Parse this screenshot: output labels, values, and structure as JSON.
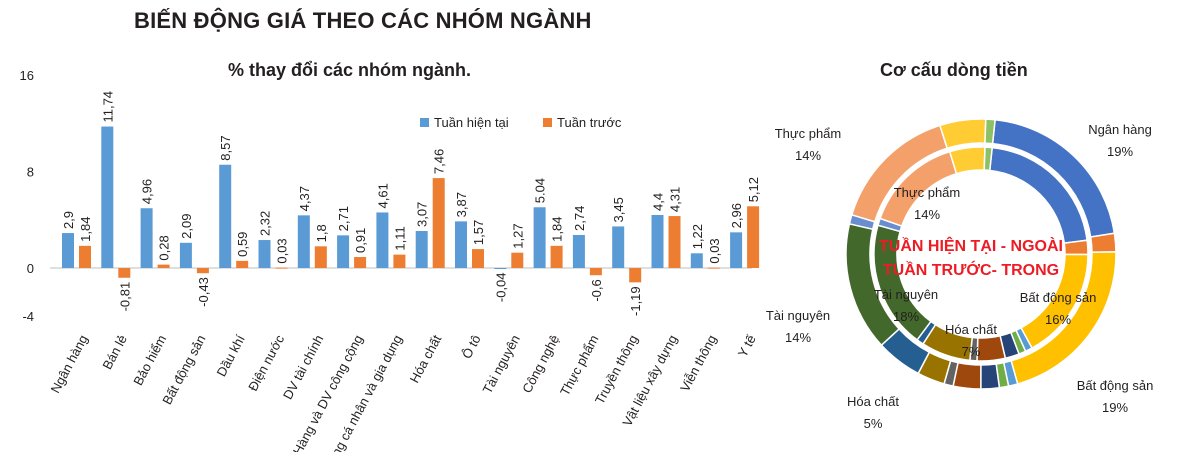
{
  "header": {
    "title": "BIẾN ĐỘNG GIÁ THEO CÁC NHÓM NGÀNH",
    "bar_subtitle": "% thay đổi các nhóm ngành.",
    "pie_subtitle": "Cơ cấu dòng tiền"
  },
  "chart_data": [
    {
      "type": "bar",
      "title": "% thay đổi các nhóm ngành.",
      "ylim": [
        -4,
        16
      ],
      "yticks": [
        -4,
        0,
        8,
        16
      ],
      "grid": false,
      "legend": "top-right",
      "categories": [
        "Ngân hàng",
        "Bán lẻ",
        "Bảo hiểm",
        "Bất động sản",
        "Dầu khí",
        "Điện nước",
        "DV tài chính",
        "Hàng và DV công cộng",
        "Hàng cá nhân và gia dụng",
        "Hóa chất",
        "Ô tô",
        "Tài nguyên",
        "Công nghệ",
        "Thực phẩm",
        "Truyền thông",
        "Vật liệu xây dựng",
        "Viễn thông",
        "Y tế"
      ],
      "series": [
        {
          "name": "Tuần hiện tại",
          "color": "#5b9bd5",
          "values": [
            2.9,
            11.74,
            4.96,
            2.09,
            8.57,
            2.32,
            4.37,
            2.71,
            4.61,
            3.07,
            3.87,
            -0.04,
            5.04,
            2.74,
            3.45,
            4.4,
            1.22,
            2.96
          ],
          "labels": [
            "2,9",
            "11,74",
            "4,96",
            "2,09",
            "8,57",
            "2,32",
            "4,37",
            "2,71",
            "4,61",
            "3,07",
            "3,87",
            "-0,04",
            "5.04",
            "2,74",
            "3,45",
            "4,4",
            "1,22",
            "2,96"
          ]
        },
        {
          "name": "Tuần trước",
          "color": "#ed7d31",
          "values": [
            1.84,
            -0.81,
            0.28,
            -0.43,
            0.59,
            0.03,
            1.8,
            0.91,
            1.11,
            7.46,
            1.57,
            1.27,
            1.84,
            -0.6,
            -1.19,
            4.31,
            0.03,
            5.12
          ],
          "labels": [
            "1,84",
            "-0,81",
            "0,28",
            "-0,43",
            "0,59",
            "0,03",
            "1,8",
            "0,91",
            "1,11",
            "7,46",
            "1,57",
            "1,27",
            "1,84",
            "-0,6",
            "-1,19",
            "4,31",
            "0,03",
            "5,12"
          ]
        }
      ]
    },
    {
      "type": "pie",
      "title": "Cơ cấu dòng tiền",
      "center_note": [
        "TUẦN HIỆN TẠI - NGOÀI",
        "TUẦN TRƯỚC- TRONG"
      ],
      "rings": [
        {
          "name": "Tuần hiện tại",
          "slices": [
            {
              "label": "Ngân hàng",
              "value": 19,
              "color": "#4472c4"
            },
            {
              "label": "",
              "value": 2,
              "color": "#ed7d31"
            },
            {
              "label": "Bất động sản",
              "value": 19,
              "color": "#ffc000"
            },
            {
              "label": "",
              "value": 1,
              "color": "#5b9bd5"
            },
            {
              "label": "",
              "value": 1,
              "color": "#70ad47"
            },
            {
              "label": "",
              "value": 2,
              "color": "#264478"
            },
            {
              "label": "",
              "value": 3,
              "color": "#9e480e"
            },
            {
              "label": "",
              "value": 1,
              "color": "#636363"
            },
            {
              "label": "",
              "value": 3,
              "color": "#997300"
            },
            {
              "label": "Hóa chất",
              "value": 5,
              "color": "#255e91"
            },
            {
              "label": "Tài nguyên",
              "value": 14,
              "color": "#43682b"
            },
            {
              "label": "",
              "value": 1,
              "color": "#698ed0"
            },
            {
              "label": "Thực phẩm",
              "value": 14,
              "color": "#f4a06b"
            },
            {
              "label": "",
              "value": 5,
              "color": "#ffcd33"
            },
            {
              "label": "",
              "value": 1,
              "color": "#8cc168"
            }
          ]
        },
        {
          "name": "Tuần trước",
          "slices": [
            {
              "label": "",
              "value": 20,
              "color": "#4472c4"
            },
            {
              "label": "",
              "value": 2,
              "color": "#ed7d31"
            },
            {
              "label": "Bất động sản",
              "value": 16,
              "color": "#ffc000"
            },
            {
              "label": "",
              "value": 1,
              "color": "#5b9bd5"
            },
            {
              "label": "",
              "value": 1,
              "color": "#70ad47"
            },
            {
              "label": "",
              "value": 2,
              "color": "#264478"
            },
            {
              "label": "",
              "value": 4,
              "color": "#9e480e"
            },
            {
              "label": "",
              "value": 1,
              "color": "#636363"
            },
            {
              "label": "Hóa chất",
              "value": 7,
              "color": "#997300"
            },
            {
              "label": "",
              "value": 1,
              "color": "#255e91"
            },
            {
              "label": "Tài nguyên",
              "value": 18,
              "color": "#43682b"
            },
            {
              "label": "",
              "value": 1,
              "color": "#698ed0"
            },
            {
              "label": "Thực phẩm",
              "value": 14,
              "color": "#f4a06b"
            },
            {
              "label": "",
              "value": 5,
              "color": "#ffcd33"
            },
            {
              "label": "",
              "value": 1,
              "color": "#8cc168"
            }
          ]
        }
      ],
      "outer_labels": [
        {
          "name": "Ngân hàng",
          "pct": "19%"
        },
        {
          "name": "Bất động sản",
          "pct": "19%"
        },
        {
          "name": "Hóa chất",
          "pct": "5%"
        },
        {
          "name": "Tài nguyên",
          "pct": "14%"
        },
        {
          "name": "Thực phẩm",
          "pct": "14%"
        }
      ],
      "inner_labels": [
        {
          "name": "Thực phẩm",
          "pct": "14%"
        },
        {
          "name": "Tài nguyên",
          "pct": "18%"
        },
        {
          "name": "Hóa chất",
          "pct": "7%"
        },
        {
          "name": "Bất động sản",
          "pct": "16%"
        }
      ]
    }
  ]
}
